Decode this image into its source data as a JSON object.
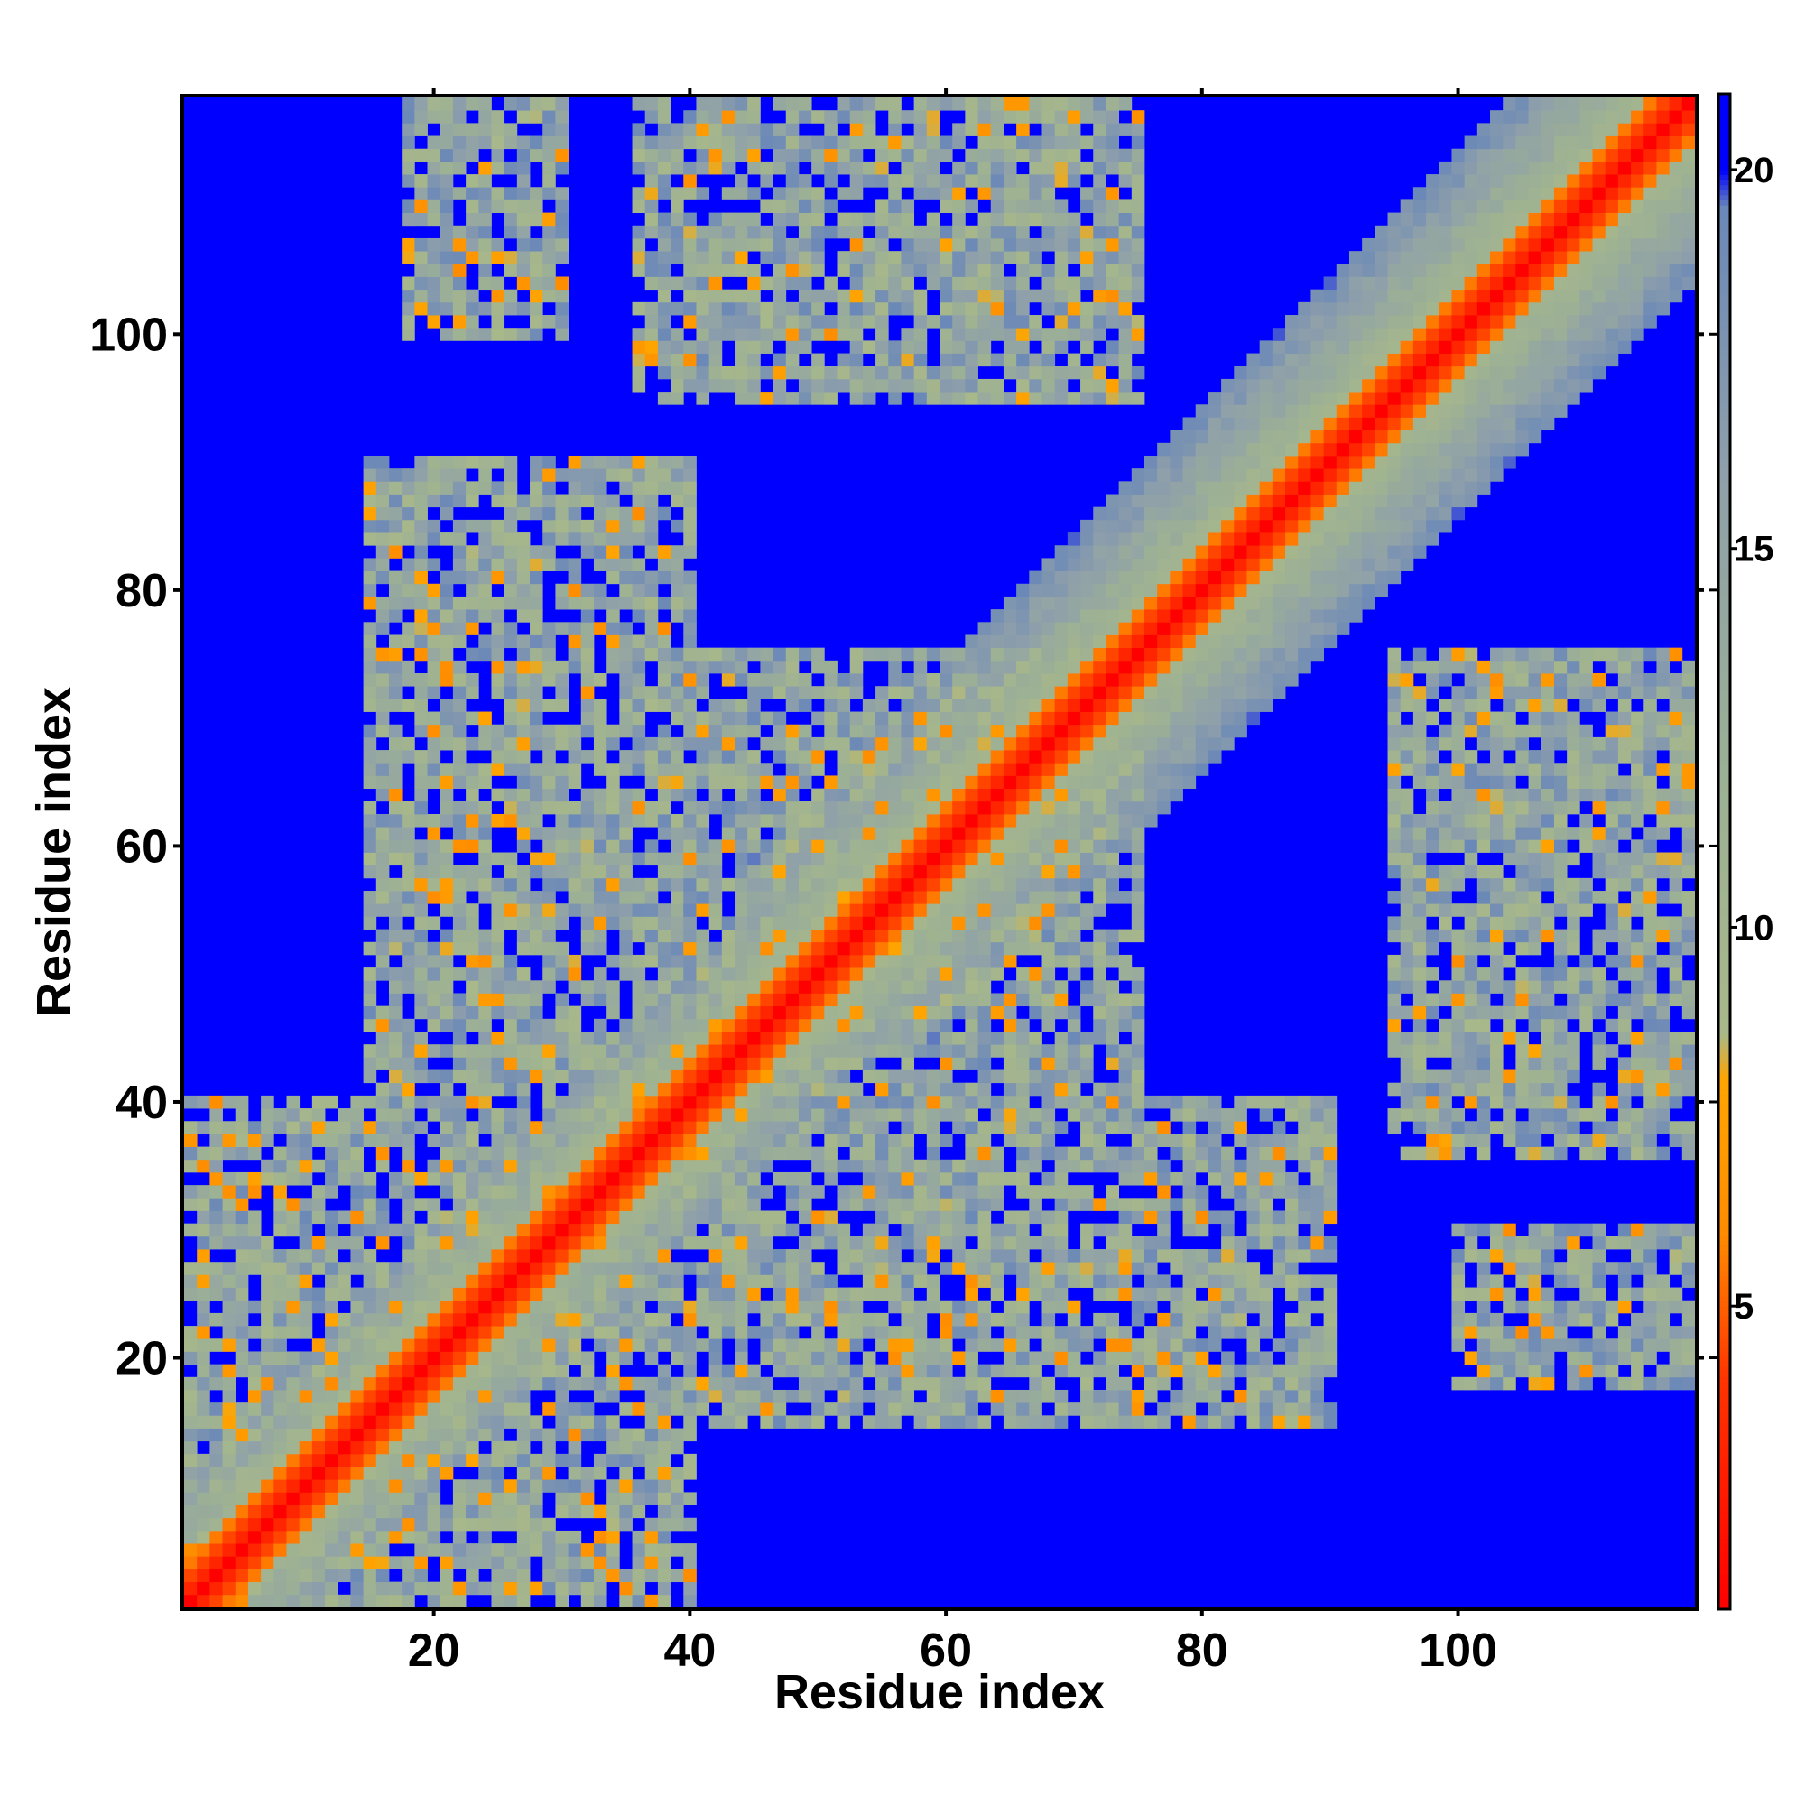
{
  "chart_data": {
    "type": "heatmap",
    "title": "",
    "xlabel": "Residue index",
    "ylabel": "Residue index",
    "n_residues": 118,
    "xlim": [
      0.5,
      118.5
    ],
    "ylim": [
      0.5,
      118.5
    ],
    "x_ticks": [
      20,
      40,
      60,
      80,
      100
    ],
    "y_ticks": [
      20,
      40,
      60,
      80,
      100
    ],
    "colorbar": {
      "range": [
        1,
        21
      ],
      "ticks": [
        5,
        10,
        15,
        20
      ],
      "stops": [
        {
          "value": 1,
          "color": "#ff0000"
        },
        {
          "value": 4,
          "color": "#ff3300"
        },
        {
          "value": 6,
          "color": "#ff8c00"
        },
        {
          "value": 8,
          "color": "#ffa500"
        },
        {
          "value": 8.6,
          "color": "#a8b88a"
        },
        {
          "value": 12,
          "color": "#9cb095"
        },
        {
          "value": 16,
          "color": "#8fa0aa"
        },
        {
          "value": 19.5,
          "color": "#6a88b8"
        },
        {
          "value": 20,
          "color": "#0000ff"
        },
        {
          "value": 21,
          "color": "#0000ff"
        }
      ]
    },
    "value_description": "Distance between residue pairs; symmetric matrix, 1 on the diagonal, values >= 20 shown as blue background",
    "contact_regions": [
      {
        "x": [
          1,
          40
        ],
        "y": [
          1,
          40
        ],
        "mean": 13
      },
      {
        "x": [
          1,
          118
        ],
        "y": [
          1,
          118
        ],
        "diagonal_band": true
      },
      {
        "x": [
          15,
          40
        ],
        "y": [
          40,
          90
        ],
        "mean": 14
      },
      {
        "x": [
          40,
          90
        ],
        "y": [
          15,
          40
        ],
        "mean": 14
      },
      {
        "x": [
          18,
          30
        ],
        "y": [
          100,
          118
        ],
        "mean": 15
      },
      {
        "x": [
          100,
          118
        ],
        "y": [
          18,
          30
        ],
        "mean": 15
      },
      {
        "x": [
          36,
          75
        ],
        "y": [
          95,
          118
        ],
        "mean": 14
      },
      {
        "x": [
          95,
          118
        ],
        "y": [
          36,
          75
        ],
        "mean": 14
      },
      {
        "x": [
          40,
          75
        ],
        "y": [
          35,
          70
        ],
        "mean": 14
      },
      {
        "x": [
          35,
          70
        ],
        "y": [
          40,
          75
        ],
        "mean": 14
      }
    ]
  }
}
